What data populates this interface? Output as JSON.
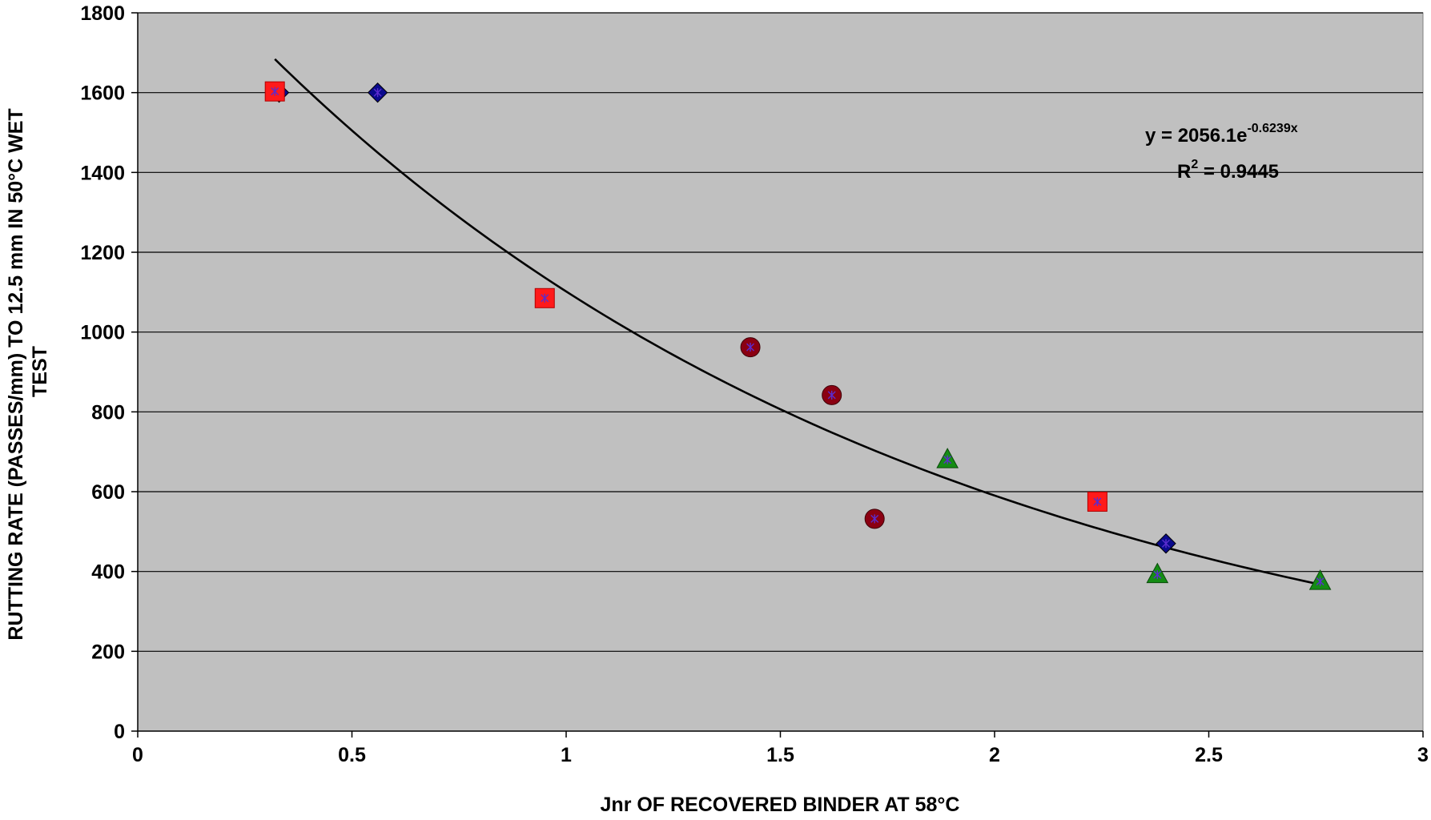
{
  "chart_data": {
    "type": "scatter",
    "xlabel": "Jnr OF RECOVERED BINDER AT 58°C",
    "ylabel_lines": [
      "RUTTING RATE (PASSES/mm) TO 12.5 mm IN 50°C WET",
      "TEST"
    ],
    "xlim": [
      0,
      3
    ],
    "ylim": [
      0,
      1800
    ],
    "x_ticks": [
      0,
      0.5,
      1,
      1.5,
      2,
      2.5,
      3
    ],
    "x_tick_labels": [
      "0",
      "0.5",
      "1",
      "1.5",
      "2",
      "2.5",
      "3"
    ],
    "y_ticks": [
      0,
      200,
      400,
      600,
      800,
      1000,
      1200,
      1400,
      1600,
      1800
    ],
    "y_tick_labels": [
      "0",
      "200",
      "400",
      "600",
      "800",
      "1000",
      "1200",
      "1400",
      "1600",
      "1800"
    ],
    "grid": "horizontal",
    "legend": "none",
    "plot_background": "#c0c0c0",
    "series": [
      {
        "marker": "diamond",
        "color": "#0a0a8c",
        "points": [
          [
            0.33,
            1600
          ],
          [
            0.56,
            1600
          ],
          [
            2.4,
            470
          ]
        ]
      },
      {
        "marker": "square",
        "color": "#ff1a1a",
        "points": [
          [
            0.32,
            1603
          ],
          [
            0.95,
            1085
          ],
          [
            2.24,
            575
          ]
        ]
      },
      {
        "marker": "circle",
        "color": "#8b0012",
        "points": [
          [
            1.43,
            962
          ],
          [
            1.62,
            842
          ],
          [
            1.72,
            532
          ]
        ]
      },
      {
        "marker": "triangle",
        "color": "#148c14",
        "points": [
          [
            1.89,
            680
          ],
          [
            2.38,
            392
          ],
          [
            2.76,
            375
          ]
        ]
      }
    ],
    "trendline": {
      "type": "exponential",
      "a": 2056.1,
      "b": -0.6239,
      "x_range": [
        0.32,
        2.76
      ],
      "color": "#000000"
    },
    "annotations": {
      "equation_prefix": "y = 2056.1e",
      "equation_exponent": "-0.6239x",
      "r2_prefix": "R",
      "r2_superscript": "2",
      "r2_suffix": " = 0.9445"
    }
  }
}
